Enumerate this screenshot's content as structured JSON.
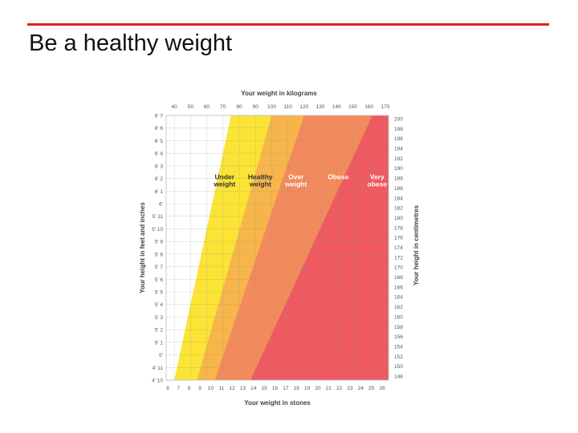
{
  "slide": {
    "title": "Be a healthy weight",
    "accent_color": "#d9261c"
  },
  "chart_data": {
    "type": "area",
    "xlabel": "Your weight in kilograms",
    "x2label": "Your weight in stones",
    "ylabel": "Your height in feet and inches",
    "y2label": "Your height in centimetres",
    "x_ticks_kg": [
      "40",
      "50",
      "60",
      "70",
      "80",
      "90",
      "100",
      "110",
      "120",
      "130",
      "140",
      "150",
      "160",
      "170"
    ],
    "x_ticks_stones": [
      "6",
      "7",
      "8",
      "9",
      "10",
      "11",
      "12",
      "13",
      "14",
      "15",
      "16",
      "17",
      "18",
      "19",
      "20",
      "21",
      "22",
      "23",
      "24",
      "25",
      "26"
    ],
    "y_ticks_feet": [
      "6' 7",
      "6' 6",
      "6' 5",
      "6' 4",
      "6' 3",
      "6' 2",
      "6' 1",
      "6'",
      "5' 11",
      "5' 10",
      "5' 9",
      "5' 8",
      "5' 7",
      "5' 6",
      "5' 5",
      "5' 4",
      "5' 3",
      "5' 2",
      "5' 1",
      "5'",
      "4' 11",
      "4' 10"
    ],
    "y_ticks_cm": [
      "200",
      "198",
      "196",
      "194",
      "192",
      "190",
      "188",
      "186",
      "184",
      "182",
      "180",
      "178",
      "176",
      "174",
      "172",
      "170",
      "168",
      "166",
      "164",
      "162",
      "160",
      "158",
      "156",
      "154",
      "152",
      "150",
      "148"
    ],
    "xlim_kg": [
      35,
      172
    ],
    "ylim_cm": [
      147,
      201
    ],
    "bands": [
      {
        "name": "Under weight",
        "color": "#ffffff",
        "label_color": "#333333",
        "upper_boundary": [
          {
            "cm": 147,
            "kg": 40
          },
          {
            "cm": 201,
            "kg": 75
          }
        ]
      },
      {
        "name": "Healthy weight",
        "color": "#fbe435",
        "label_color": "#333333",
        "upper_boundary": [
          {
            "cm": 147,
            "kg": 54
          },
          {
            "cm": 201,
            "kg": 100
          }
        ]
      },
      {
        "name": "Over weight",
        "color": "#f7b54a",
        "label_color": "#ffffff",
        "upper_boundary": [
          {
            "cm": 147,
            "kg": 65
          },
          {
            "cm": 201,
            "kg": 120
          }
        ]
      },
      {
        "name": "Obese",
        "color": "#f28a5c",
        "label_color": "#ffffff",
        "upper_boundary": [
          {
            "cm": 147,
            "kg": 87
          },
          {
            "cm": 201,
            "kg": 162
          }
        ]
      },
      {
        "name": "Very obese",
        "color": "#ee5a5f",
        "label_color": "#ffffff",
        "upper_boundary": [
          {
            "cm": 147,
            "kg": 172
          },
          {
            "cm": 201,
            "kg": 172
          }
        ]
      }
    ],
    "band_labels": [
      {
        "lines": [
          "Under",
          "weight"
        ],
        "kg": 71,
        "cm": 188
      },
      {
        "lines": [
          "Healthy",
          "weight"
        ],
        "kg": 93,
        "cm": 188
      },
      {
        "lines": [
          "Over",
          "weight"
        ],
        "kg": 115,
        "cm": 188
      },
      {
        "lines": [
          "Obese"
        ],
        "kg": 141,
        "cm": 188
      },
      {
        "lines": [
          "Very",
          "obese"
        ],
        "kg": 165,
        "cm": 188
      }
    ],
    "grid": true,
    "legend": "none"
  }
}
